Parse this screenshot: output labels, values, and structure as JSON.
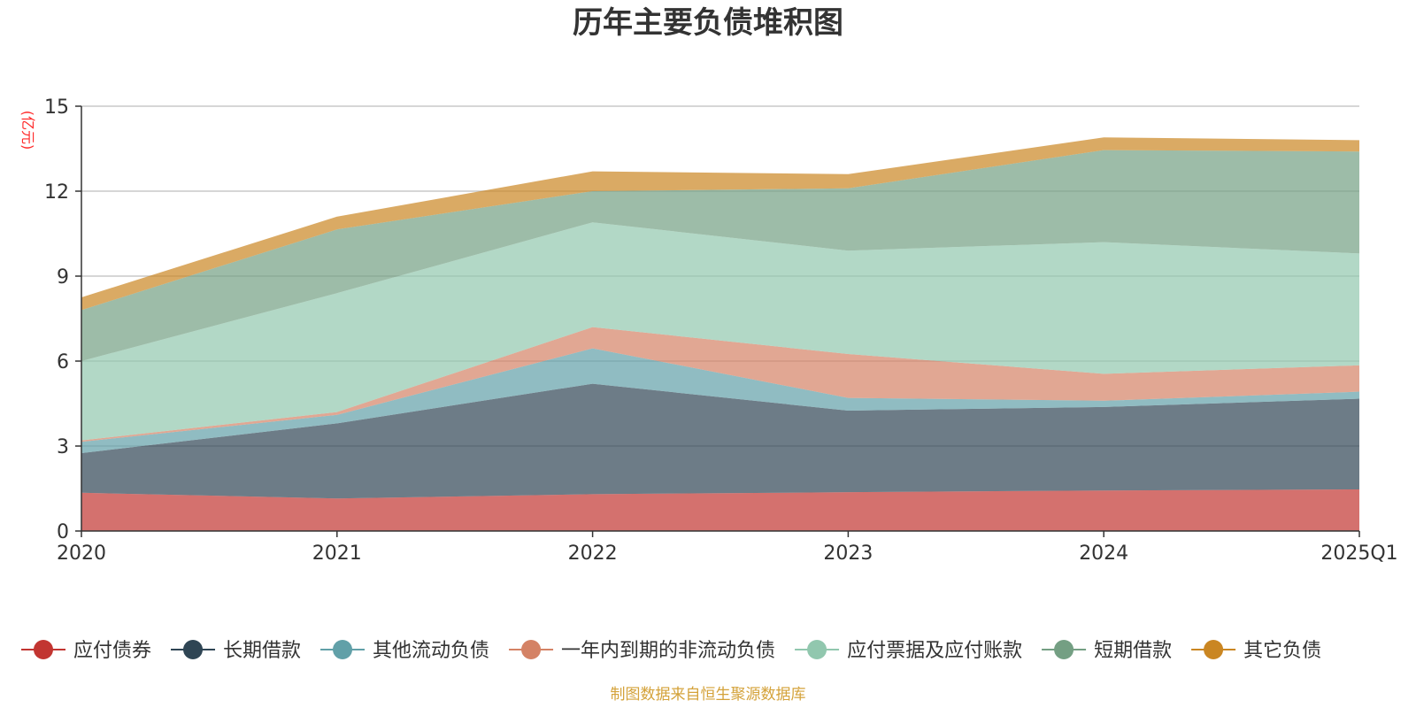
{
  "chart_data": {
    "type": "area",
    "stacked": true,
    "title": "历年主要负债堆积图",
    "unit": "(亿元)",
    "ylim": [
      0,
      15
    ],
    "yticks": [
      0,
      3,
      6,
      9,
      12,
      15
    ],
    "categories": [
      "2020",
      "2021",
      "2022",
      "2023",
      "2024",
      "2025Q1"
    ],
    "grid": true,
    "legend_position": "bottom",
    "series": [
      {
        "name": "应付债券",
        "color": "#c23531",
        "values": [
          1.35,
          1.15,
          1.3,
          1.37,
          1.43,
          1.47
        ]
      },
      {
        "name": "长期借款",
        "color": "#2f4554",
        "values": [
          1.4,
          2.65,
          3.9,
          2.88,
          2.95,
          3.2
        ]
      },
      {
        "name": "其他流动负债",
        "color": "#61a0a8",
        "values": [
          0.4,
          0.3,
          1.25,
          0.45,
          0.22,
          0.25
        ]
      },
      {
        "name": "一年内到期的非流动负债",
        "color": "#d48265",
        "values": [
          0.05,
          0.1,
          0.75,
          1.55,
          0.95,
          0.93
        ]
      },
      {
        "name": "应付票据及应付账款",
        "color": "#91c7ae",
        "values": [
          2.8,
          4.2,
          3.7,
          3.65,
          4.65,
          3.95
        ]
      },
      {
        "name": "短期借款",
        "color": "#749f83",
        "values": [
          1.8,
          2.25,
          1.1,
          2.2,
          3.25,
          3.6
        ]
      },
      {
        "name": "其它负债",
        "color": "#ca8622",
        "values": [
          0.45,
          0.45,
          0.7,
          0.5,
          0.45,
          0.4
        ]
      }
    ],
    "source": "制图数据来自恒生聚源数据库"
  }
}
